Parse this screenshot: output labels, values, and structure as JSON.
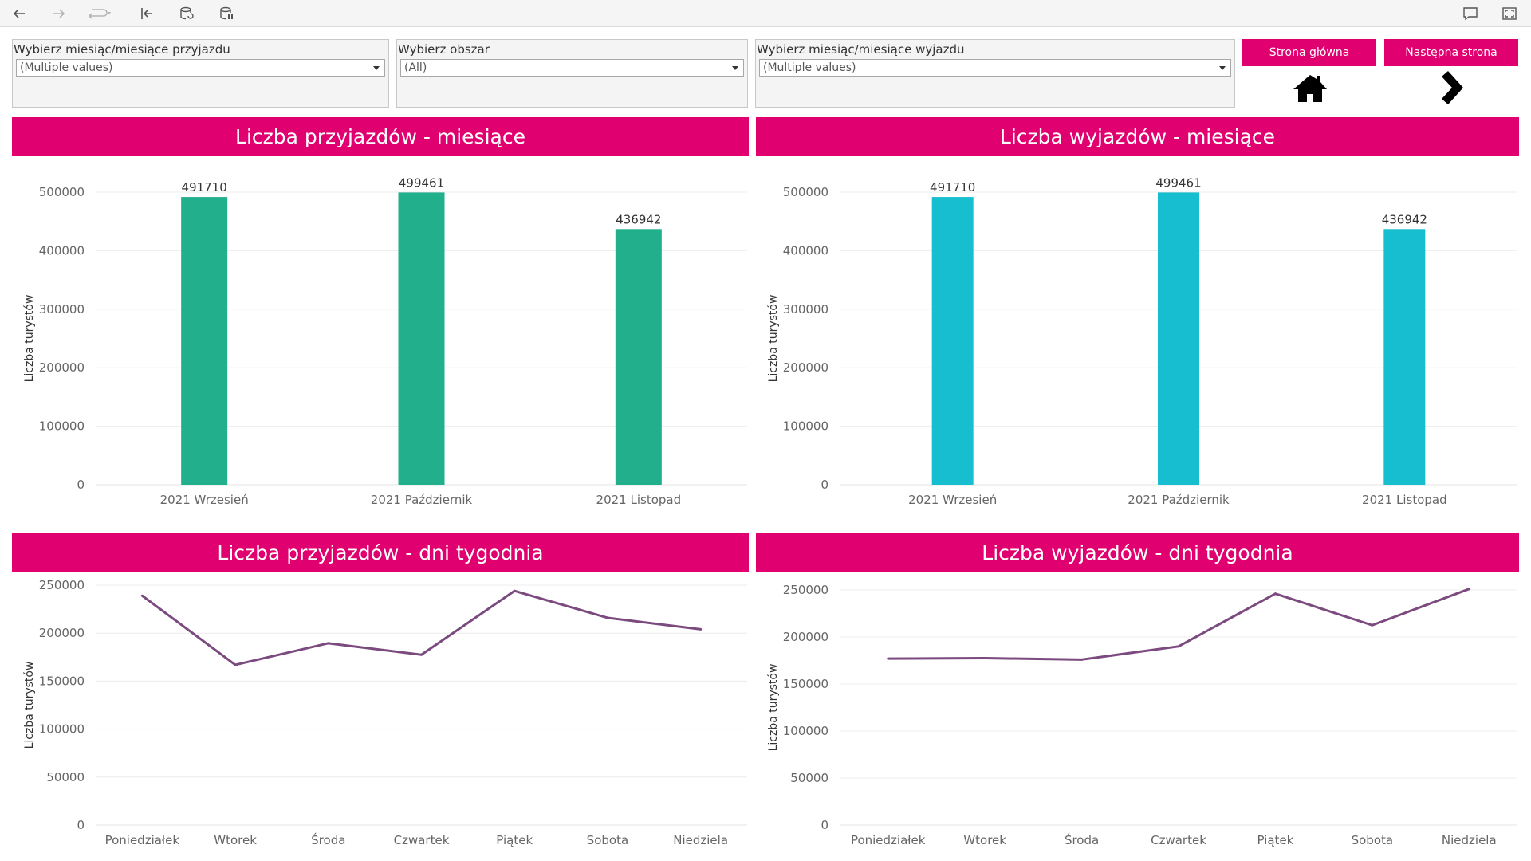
{
  "toolbar": {
    "items": [
      {
        "name": "back-icon",
        "enabled": true
      },
      {
        "name": "forward-icon",
        "enabled": false
      },
      {
        "name": "redo-icon",
        "enabled": false
      },
      {
        "name": "revert-icon",
        "enabled": true
      },
      {
        "name": "refresh-data-icon",
        "enabled": true
      },
      {
        "name": "pause-updates-icon",
        "enabled": true
      }
    ],
    "right_items": [
      "comment-icon",
      "fullscreen-icon"
    ]
  },
  "filters": [
    {
      "label": "Wybierz miesiąc/miesiące przyjazdu",
      "value": "(Multiple values)"
    },
    {
      "label": "Wybierz obszar",
      "value": "(All)"
    },
    {
      "label": "Wybierz miesiąc/miesiące wyjazdu",
      "value": "(Multiple values)"
    }
  ],
  "nav": {
    "home_label": "Strona główna",
    "next_label": "Następna strona",
    "home_icon": "home-icon",
    "next_icon": "chevron-right-icon"
  },
  "colors": {
    "accent": "#e0006f",
    "bar_arrivals": "#22b08c",
    "bar_departures": "#17becf",
    "line": "#7b4a7f"
  },
  "chart_data": [
    {
      "type": "bar",
      "title": "Liczba przyjazdów - miesiące",
      "ylabel": "Liczba turystów",
      "categories": [
        "2021 Wrzesień",
        "2021 Październik",
        "2021 Listopad"
      ],
      "values": [
        491710,
        499461,
        436942
      ],
      "ylim": [
        0,
        500000
      ],
      "yticks": [
        0,
        100000,
        200000,
        300000,
        400000,
        500000
      ],
      "data_labels": true,
      "grid": true
    },
    {
      "type": "bar",
      "title": "Liczba wyjazdów - miesiące",
      "ylabel": "Liczba turystów",
      "categories": [
        "2021 Wrzesień",
        "2021 Październik",
        "2021 Listopad"
      ],
      "values": [
        491710,
        499461,
        436942
      ],
      "ylim": [
        0,
        500000
      ],
      "yticks": [
        0,
        100000,
        200000,
        300000,
        400000,
        500000
      ],
      "data_labels": true,
      "grid": true
    },
    {
      "type": "line",
      "title": "Liczba przyjazdów - dni tygodnia",
      "ylabel": "Liczba turystów",
      "categories": [
        "Poniedziałek",
        "Wtorek",
        "Środa",
        "Czwartek",
        "Piątek",
        "Sobota",
        "Niedziela"
      ],
      "values": [
        239000,
        167000,
        189500,
        177500,
        244000,
        216000,
        204000
      ],
      "ylim": [
        0,
        250000
      ],
      "yticks": [
        0,
        50000,
        100000,
        150000,
        200000,
        250000
      ],
      "grid": true
    },
    {
      "type": "line",
      "title": "Liczba wyjazdów - dni tygodnia",
      "ylabel": "Liczba turystów",
      "categories": [
        "Poniedziałek",
        "Wtorek",
        "Środa",
        "Czwartek",
        "Piątek",
        "Sobota",
        "Niedziela"
      ],
      "values": [
        177000,
        177500,
        176000,
        190000,
        246000,
        212500,
        251000
      ],
      "ylim": [
        0,
        250000
      ],
      "yticks": [
        0,
        50000,
        100000,
        150000,
        200000,
        250000
      ],
      "grid": true
    }
  ]
}
